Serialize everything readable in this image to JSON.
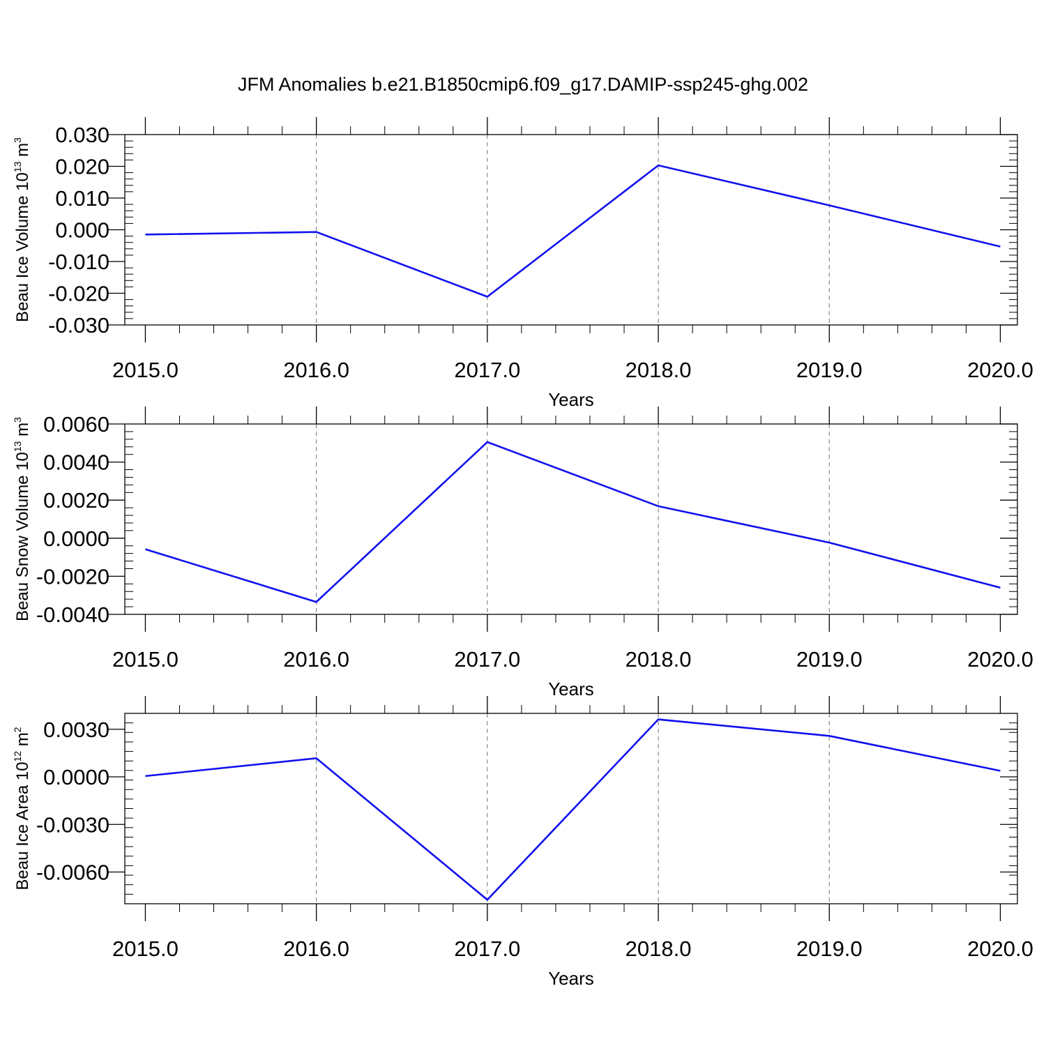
{
  "title": "JFM Anomalies b.e21.B1850cmip6.f09_g17.DAMIP-ssp245-ghg.002",
  "colors": {
    "line": "#1010ee",
    "axes": "#000000",
    "grid": "#888888"
  },
  "chart_data": [
    {
      "type": "line",
      "xlabel": "Years",
      "ylabel": {
        "text": "Beau Ice Volume 10",
        "exp": "13",
        "unit": " m",
        "unit_exp": "3"
      },
      "x": [
        2015,
        2016,
        2017,
        2018,
        2019,
        2020
      ],
      "x_ticks": [
        "2015.0",
        "2016.0",
        "2017.0",
        "2018.0",
        "2019.0",
        "2020.0"
      ],
      "y_ticks": [
        0.03,
        0.02,
        0.01,
        0.0,
        -0.01,
        -0.02,
        -0.03
      ],
      "y_tick_labels": [
        "0.030",
        "0.020",
        "0.010",
        "0.000",
        "-0.010",
        "-0.020",
        "-0.030"
      ],
      "xlim": [
        2014.88,
        2020.1
      ],
      "ylim": [
        -0.03,
        0.03
      ],
      "series": [
        {
          "values": [
            -0.0015,
            -0.0007,
            -0.0211,
            0.0203,
            0.0077,
            -0.0053
          ]
        }
      ]
    },
    {
      "type": "line",
      "xlabel": "Years",
      "ylabel": {
        "text": "Beau Snow Volume 10",
        "exp": "13",
        "unit": " m",
        "unit_exp": "3"
      },
      "x": [
        2015,
        2016,
        2017,
        2018,
        2019,
        2020
      ],
      "x_ticks": [
        "2015.0",
        "2016.0",
        "2017.0",
        "2018.0",
        "2019.0",
        "2020.0"
      ],
      "y_ticks": [
        0.006,
        0.004,
        0.002,
        0.0,
        -0.002,
        -0.004
      ],
      "y_tick_labels": [
        "0.0060",
        "0.0040",
        "0.0020",
        "0.0000",
        "-0.0020",
        "-0.0040"
      ],
      "xlim": [
        2014.88,
        2020.1
      ],
      "ylim": [
        -0.004,
        0.006
      ],
      "series": [
        {
          "values": [
            -0.00058,
            -0.00335,
            0.00505,
            0.00168,
            -0.00023,
            -0.0026
          ]
        }
      ]
    },
    {
      "type": "line",
      "xlabel": "Years",
      "ylabel": {
        "text": "Beau Ice Area 10",
        "exp": "12",
        "unit": " m",
        "unit_exp": "2"
      },
      "x": [
        2015,
        2016,
        2017,
        2018,
        2019,
        2020
      ],
      "x_ticks": [
        "2015.0",
        "2016.0",
        "2017.0",
        "2018.0",
        "2019.0",
        "2020.0"
      ],
      "y_ticks": [
        0.003,
        0.0,
        -0.003,
        -0.006
      ],
      "y_tick_labels": [
        "0.0030",
        "0.0000",
        "-0.0030",
        "-0.0060"
      ],
      "xlim": [
        2014.88,
        2020.1
      ],
      "ylim": [
        -0.008,
        0.004
      ],
      "series": [
        {
          "values": [
            5e-05,
            0.00117,
            -0.00775,
            0.00362,
            0.00258,
            0.00038
          ]
        }
      ]
    }
  ]
}
